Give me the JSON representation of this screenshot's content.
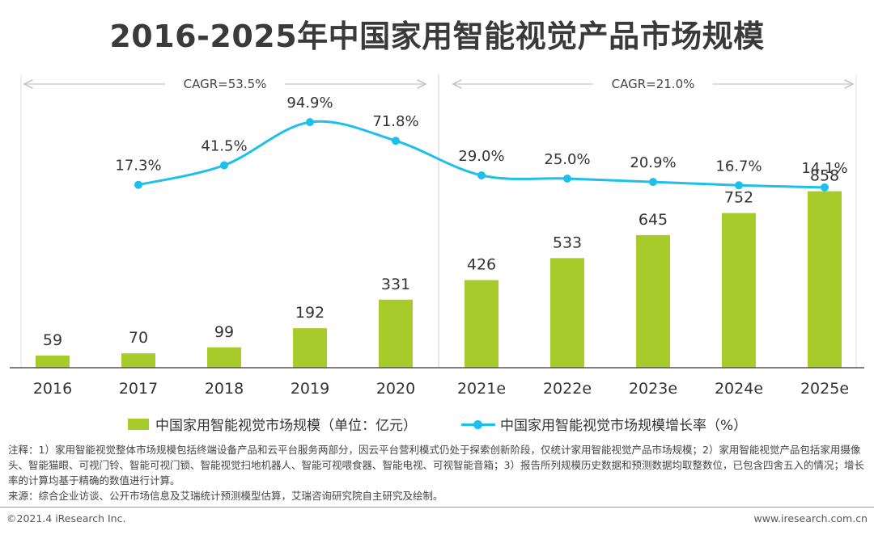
{
  "title": "2016-2025年中国家用智能视觉产品市场规模",
  "chart_data": {
    "type": "bar",
    "categories": [
      "2016",
      "2017",
      "2018",
      "2019",
      "2020",
      "2021e",
      "2022e",
      "2023e",
      "2024e",
      "2025e"
    ],
    "series": [
      {
        "name": "中国家用智能视觉市场规模（单位：亿元）",
        "type": "bar",
        "values": [
          59,
          70,
          99,
          192,
          331,
          426,
          533,
          645,
          752,
          858
        ],
        "labels": [
          "59",
          "70",
          "99",
          "192",
          "331",
          "426",
          "533",
          "645",
          "752",
          "858"
        ]
      },
      {
        "name": "中国家用智能视觉市场规模增长率（%）",
        "type": "line",
        "values": [
          null,
          17.3,
          41.5,
          94.9,
          71.8,
          29.0,
          25.0,
          20.9,
          16.7,
          14.1
        ],
        "labels": [
          "",
          "17.3%",
          "41.5%",
          "94.9%",
          "71.8%",
          "29.0%",
          "25.0%",
          "20.9%",
          "16.7%",
          "14.1%"
        ]
      }
    ],
    "cagr": [
      {
        "label": "CAGR=53.5%",
        "from": "2016",
        "to": "2020"
      },
      {
        "label": "CAGR=21.0%",
        "from": "2021e",
        "to": "2025e"
      }
    ],
    "legend_position": "bottom",
    "grid": false
  },
  "colors": {
    "bar": "#a8cb2c",
    "line": "#1cc0ea",
    "title": "#3a3a3a"
  },
  "legend": {
    "bar_label": "中国家用智能视觉市场规模（单位：亿元）",
    "line_label": "中国家用智能视觉市场规模增长率（%）"
  },
  "notes": {
    "note": "注释：1）家用智能视觉整体市场规模包括终端设备产品和云平台服务两部分，因云平台营利模式仍处于探索创新阶段，仅统计家用智能视觉产品市场规模；2）家用智能视觉产品包括家用摄像头、智能猫眼、可视门铃、智能可视门锁、智能视觉扫地机器人、智能可视喂食器、智能电视、可视智能音箱；3）报告所列规模历史数据和预测数据均取整数位，已包含四舍五入的情况；增长率的计算均基于精确的数值进行计算。",
    "source": "来源：综合企业访谈、公开市场信息及艾瑞统计预测模型估算，艾瑞咨询研究院自主研究及绘制。"
  },
  "footer": {
    "copyright": "©2021.4 iResearch Inc.",
    "website": "www.iresearch.com.cn"
  }
}
